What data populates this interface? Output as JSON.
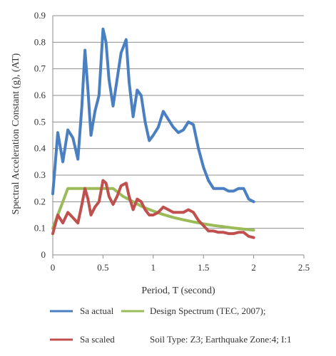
{
  "chart_data": {
    "type": "line",
    "xlabel": "Period, T (second)",
    "ylabel": "Spectral Acceleration Constant (g), (AT)",
    "xlim": [
      0,
      2.5
    ],
    "ylim": [
      0,
      0.9
    ],
    "xticks": [
      "0",
      "0.5",
      "1",
      "1.5",
      "2",
      "2.5"
    ],
    "yticks": [
      "0",
      "0.1",
      "0.2",
      "0.3",
      "0.4",
      "0.5",
      "0.6",
      "0.7",
      "0.8",
      "0.9"
    ],
    "grid": "horizontal",
    "legend_position": "bottom",
    "series": [
      {
        "name": "Sa actual",
        "color": "#4a7fc1",
        "x": [
          0,
          0.05,
          0.1,
          0.15,
          0.2,
          0.25,
          0.29,
          0.32,
          0.35,
          0.38,
          0.42,
          0.46,
          0.5,
          0.53,
          0.56,
          0.6,
          0.64,
          0.68,
          0.73,
          0.76,
          0.8,
          0.84,
          0.88,
          0.92,
          0.96,
          1.0,
          1.05,
          1.1,
          1.15,
          1.2,
          1.25,
          1.3,
          1.35,
          1.4,
          1.45,
          1.5,
          1.55,
          1.6,
          1.65,
          1.7,
          1.75,
          1.8,
          1.85,
          1.9,
          1.95,
          2.0
        ],
        "y": [
          0.23,
          0.46,
          0.35,
          0.47,
          0.44,
          0.36,
          0.56,
          0.77,
          0.62,
          0.45,
          0.54,
          0.6,
          0.85,
          0.8,
          0.66,
          0.56,
          0.66,
          0.76,
          0.81,
          0.65,
          0.52,
          0.62,
          0.6,
          0.5,
          0.43,
          0.45,
          0.48,
          0.54,
          0.51,
          0.48,
          0.46,
          0.47,
          0.5,
          0.49,
          0.4,
          0.33,
          0.28,
          0.25,
          0.25,
          0.25,
          0.24,
          0.24,
          0.25,
          0.25,
          0.21,
          0.2
        ]
      },
      {
        "name": "Sa scaled",
        "color": "#c0504d",
        "x": [
          0,
          0.05,
          0.1,
          0.15,
          0.2,
          0.25,
          0.29,
          0.32,
          0.35,
          0.38,
          0.42,
          0.46,
          0.5,
          0.53,
          0.56,
          0.6,
          0.64,
          0.68,
          0.73,
          0.76,
          0.8,
          0.84,
          0.88,
          0.92,
          0.96,
          1.0,
          1.05,
          1.1,
          1.15,
          1.2,
          1.25,
          1.3,
          1.35,
          1.4,
          1.45,
          1.5,
          1.55,
          1.6,
          1.65,
          1.7,
          1.75,
          1.8,
          1.85,
          1.9,
          1.95,
          2.0
        ],
        "y": [
          0.08,
          0.15,
          0.12,
          0.16,
          0.14,
          0.12,
          0.19,
          0.25,
          0.21,
          0.15,
          0.18,
          0.2,
          0.28,
          0.27,
          0.22,
          0.19,
          0.22,
          0.26,
          0.27,
          0.22,
          0.17,
          0.21,
          0.2,
          0.17,
          0.15,
          0.15,
          0.16,
          0.18,
          0.17,
          0.16,
          0.16,
          0.16,
          0.17,
          0.16,
          0.13,
          0.11,
          0.09,
          0.09,
          0.085,
          0.085,
          0.08,
          0.08,
          0.085,
          0.085,
          0.07,
          0.065
        ]
      },
      {
        "name": "Design Spectrum (TEC, 2007);",
        "color": "#9bbb59",
        "x": [
          0,
          0.05,
          0.1,
          0.15,
          0.6,
          0.7,
          0.8,
          0.9,
          1.0,
          1.1,
          1.2,
          1.3,
          1.4,
          1.5,
          1.6,
          1.7,
          1.8,
          1.9,
          2.0
        ],
        "y": [
          0.1,
          0.15,
          0.2,
          0.25,
          0.25,
          0.22,
          0.2,
          0.18,
          0.165,
          0.152,
          0.141,
          0.132,
          0.124,
          0.117,
          0.111,
          0.106,
          0.101,
          0.097,
          0.093
        ]
      }
    ],
    "legend_note": "Soil Type: Z3; Earthquake Zone:4; I:1"
  }
}
